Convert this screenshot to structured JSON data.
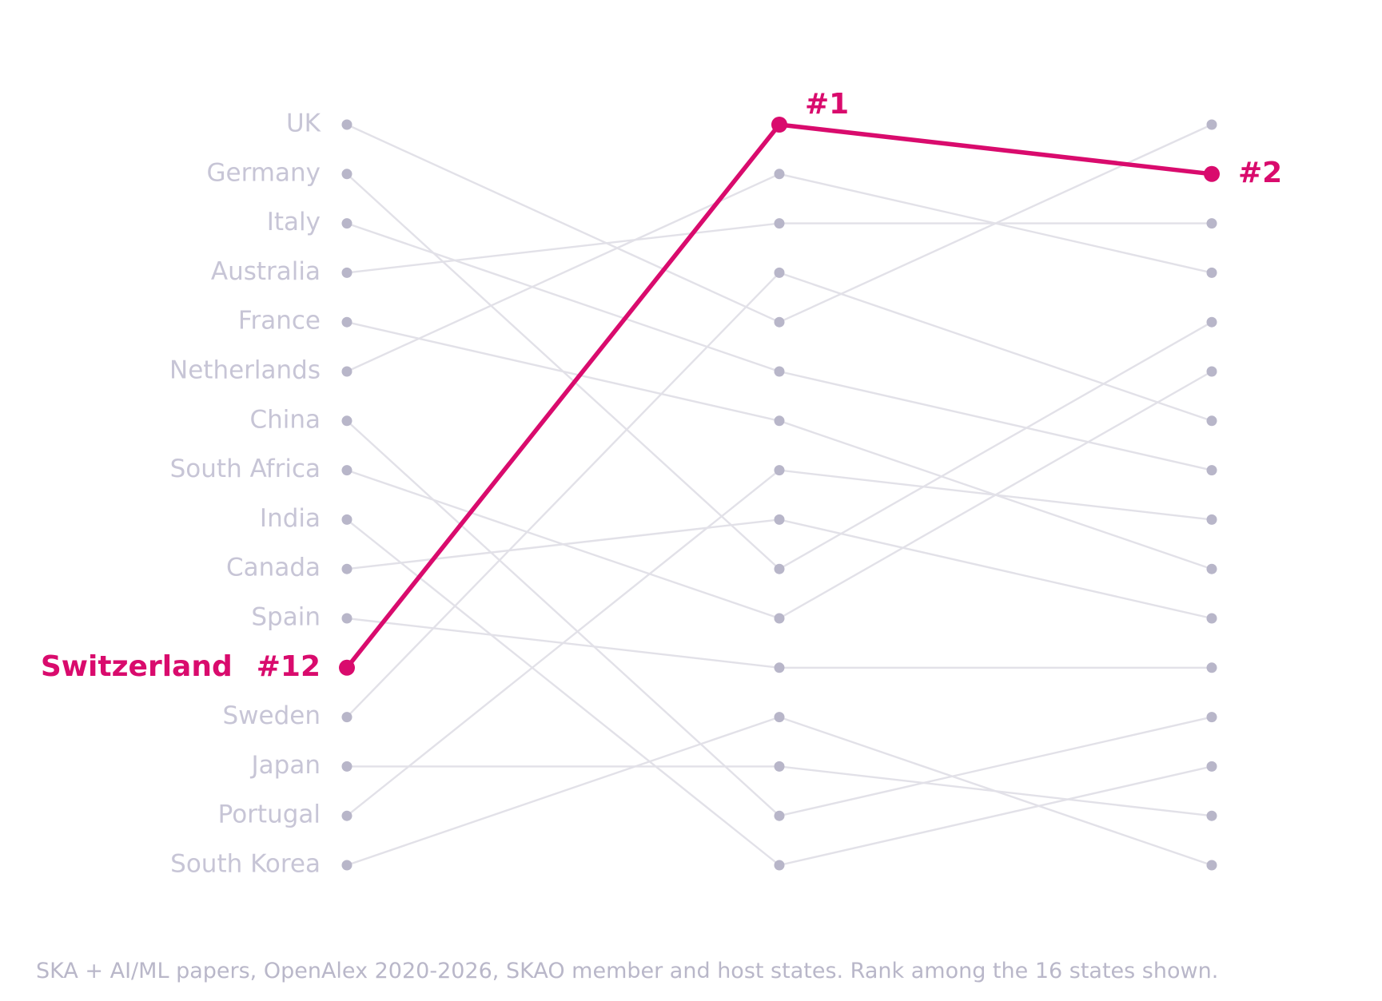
{
  "chart_data": {
    "type": "line",
    "subtype": "slope-rank",
    "highlight": "Switzerland",
    "rank_axis": {
      "min": 1,
      "max": 16,
      "direction": "top-to-bottom"
    },
    "stages": 3,
    "series": [
      {
        "name": "UK",
        "ranks": [
          1,
          5,
          1
        ]
      },
      {
        "name": "Germany",
        "ranks": [
          2,
          10,
          5
        ]
      },
      {
        "name": "Italy",
        "ranks": [
          3,
          6,
          8
        ]
      },
      {
        "name": "Australia",
        "ranks": [
          4,
          3,
          3
        ]
      },
      {
        "name": "France",
        "ranks": [
          5,
          7,
          10
        ]
      },
      {
        "name": "Netherlands",
        "ranks": [
          6,
          2,
          4
        ]
      },
      {
        "name": "China",
        "ranks": [
          7,
          15,
          13
        ]
      },
      {
        "name": "South Africa",
        "ranks": [
          8,
          11,
          6
        ]
      },
      {
        "name": "India",
        "ranks": [
          9,
          16,
          14
        ]
      },
      {
        "name": "Canada",
        "ranks": [
          10,
          9,
          11
        ]
      },
      {
        "name": "Spain",
        "ranks": [
          11,
          12,
          12
        ]
      },
      {
        "name": "Switzerland",
        "ranks": [
          12,
          1,
          2
        ]
      },
      {
        "name": "Sweden",
        "ranks": [
          13,
          4,
          7
        ]
      },
      {
        "name": "Japan",
        "ranks": [
          14,
          14,
          15
        ]
      },
      {
        "name": "Portugal",
        "ranks": [
          15,
          8,
          9
        ]
      },
      {
        "name": "South Korea",
        "ranks": [
          16,
          13,
          16
        ]
      }
    ],
    "highlight_labels": {
      "start": "#12",
      "middle": "#1",
      "end": "#2"
    },
    "colors": {
      "highlight": "#d90b6d",
      "muted_line": "#e2e1e8",
      "muted_dot": "#b8b6c9",
      "muted_text": "#c7c5d6"
    },
    "footnote": "SKA + AI/ML papers, OpenAlex 2020-2026, SKAO member and host states. Rank among the 16 states shown."
  }
}
